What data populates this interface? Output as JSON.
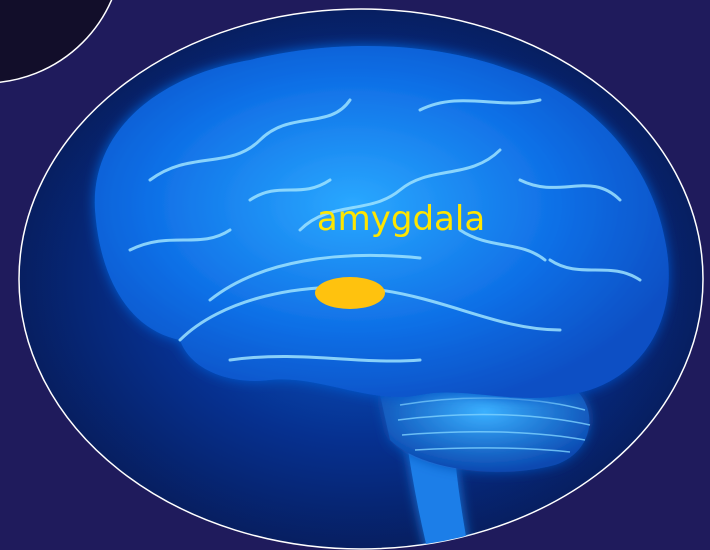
{
  "label": "amygdala"
}
